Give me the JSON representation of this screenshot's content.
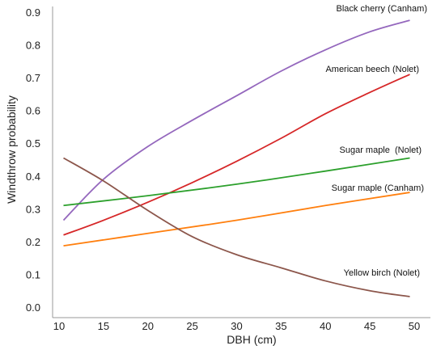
{
  "chart_data": {
    "type": "line",
    "title": "",
    "xlabel": "DBH (cm)",
    "ylabel": "Windthrow probability",
    "xlim": [
      10,
      50
    ],
    "ylim": [
      0,
      0.9
    ],
    "xticks": [
      10,
      15,
      20,
      25,
      30,
      35,
      40,
      45,
      50
    ],
    "yticks": [
      0.0,
      0.1,
      0.2,
      0.3,
      0.4,
      0.5,
      0.6,
      0.7,
      0.8,
      0.9
    ],
    "xtick_labels": [
      "10",
      "15",
      "20",
      "25",
      "30",
      "35",
      "40",
      "45",
      "50"
    ],
    "ytick_labels": [
      "0.0",
      "0.1",
      "0.2",
      "0.3",
      "0.4",
      "0.5",
      "0.6",
      "0.7",
      "0.8",
      "0.9"
    ],
    "grid": false,
    "legend": "inline labels at line ends",
    "series": [
      {
        "name": "Black cherry (Canham)",
        "color": "#9467bd",
        "x": [
          10.5,
          15,
          20,
          25,
          30,
          35,
          40,
          45,
          49.5
        ],
        "y": [
          0.265,
          0.39,
          0.49,
          0.57,
          0.645,
          0.72,
          0.785,
          0.84,
          0.875
        ]
      },
      {
        "name": "American beech (Nolet)",
        "color": "#d62728",
        "x": [
          10.5,
          15,
          20,
          25,
          30,
          35,
          40,
          45,
          49.5
        ],
        "y": [
          0.22,
          0.265,
          0.32,
          0.38,
          0.445,
          0.515,
          0.59,
          0.655,
          0.71
        ]
      },
      {
        "name": "Sugar maple  (Nolet)",
        "color": "#2ca02c",
        "x": [
          10.5,
          20,
          30,
          40,
          49.5
        ],
        "y": [
          0.31,
          0.34,
          0.375,
          0.415,
          0.455
        ]
      },
      {
        "name": "Sugar maple (Canham)",
        "color": "#ff7f0e",
        "x": [
          10.5,
          20,
          30,
          40,
          49.5
        ],
        "y": [
          0.187,
          0.225,
          0.265,
          0.31,
          0.35
        ]
      },
      {
        "name": "Yellow birch (Nolet)",
        "color": "#8c564b",
        "x": [
          10.5,
          15,
          20,
          25,
          30,
          35,
          40,
          45,
          49.5
        ],
        "y": [
          0.455,
          0.385,
          0.295,
          0.215,
          0.16,
          0.12,
          0.08,
          0.05,
          0.032
        ]
      }
    ]
  }
}
